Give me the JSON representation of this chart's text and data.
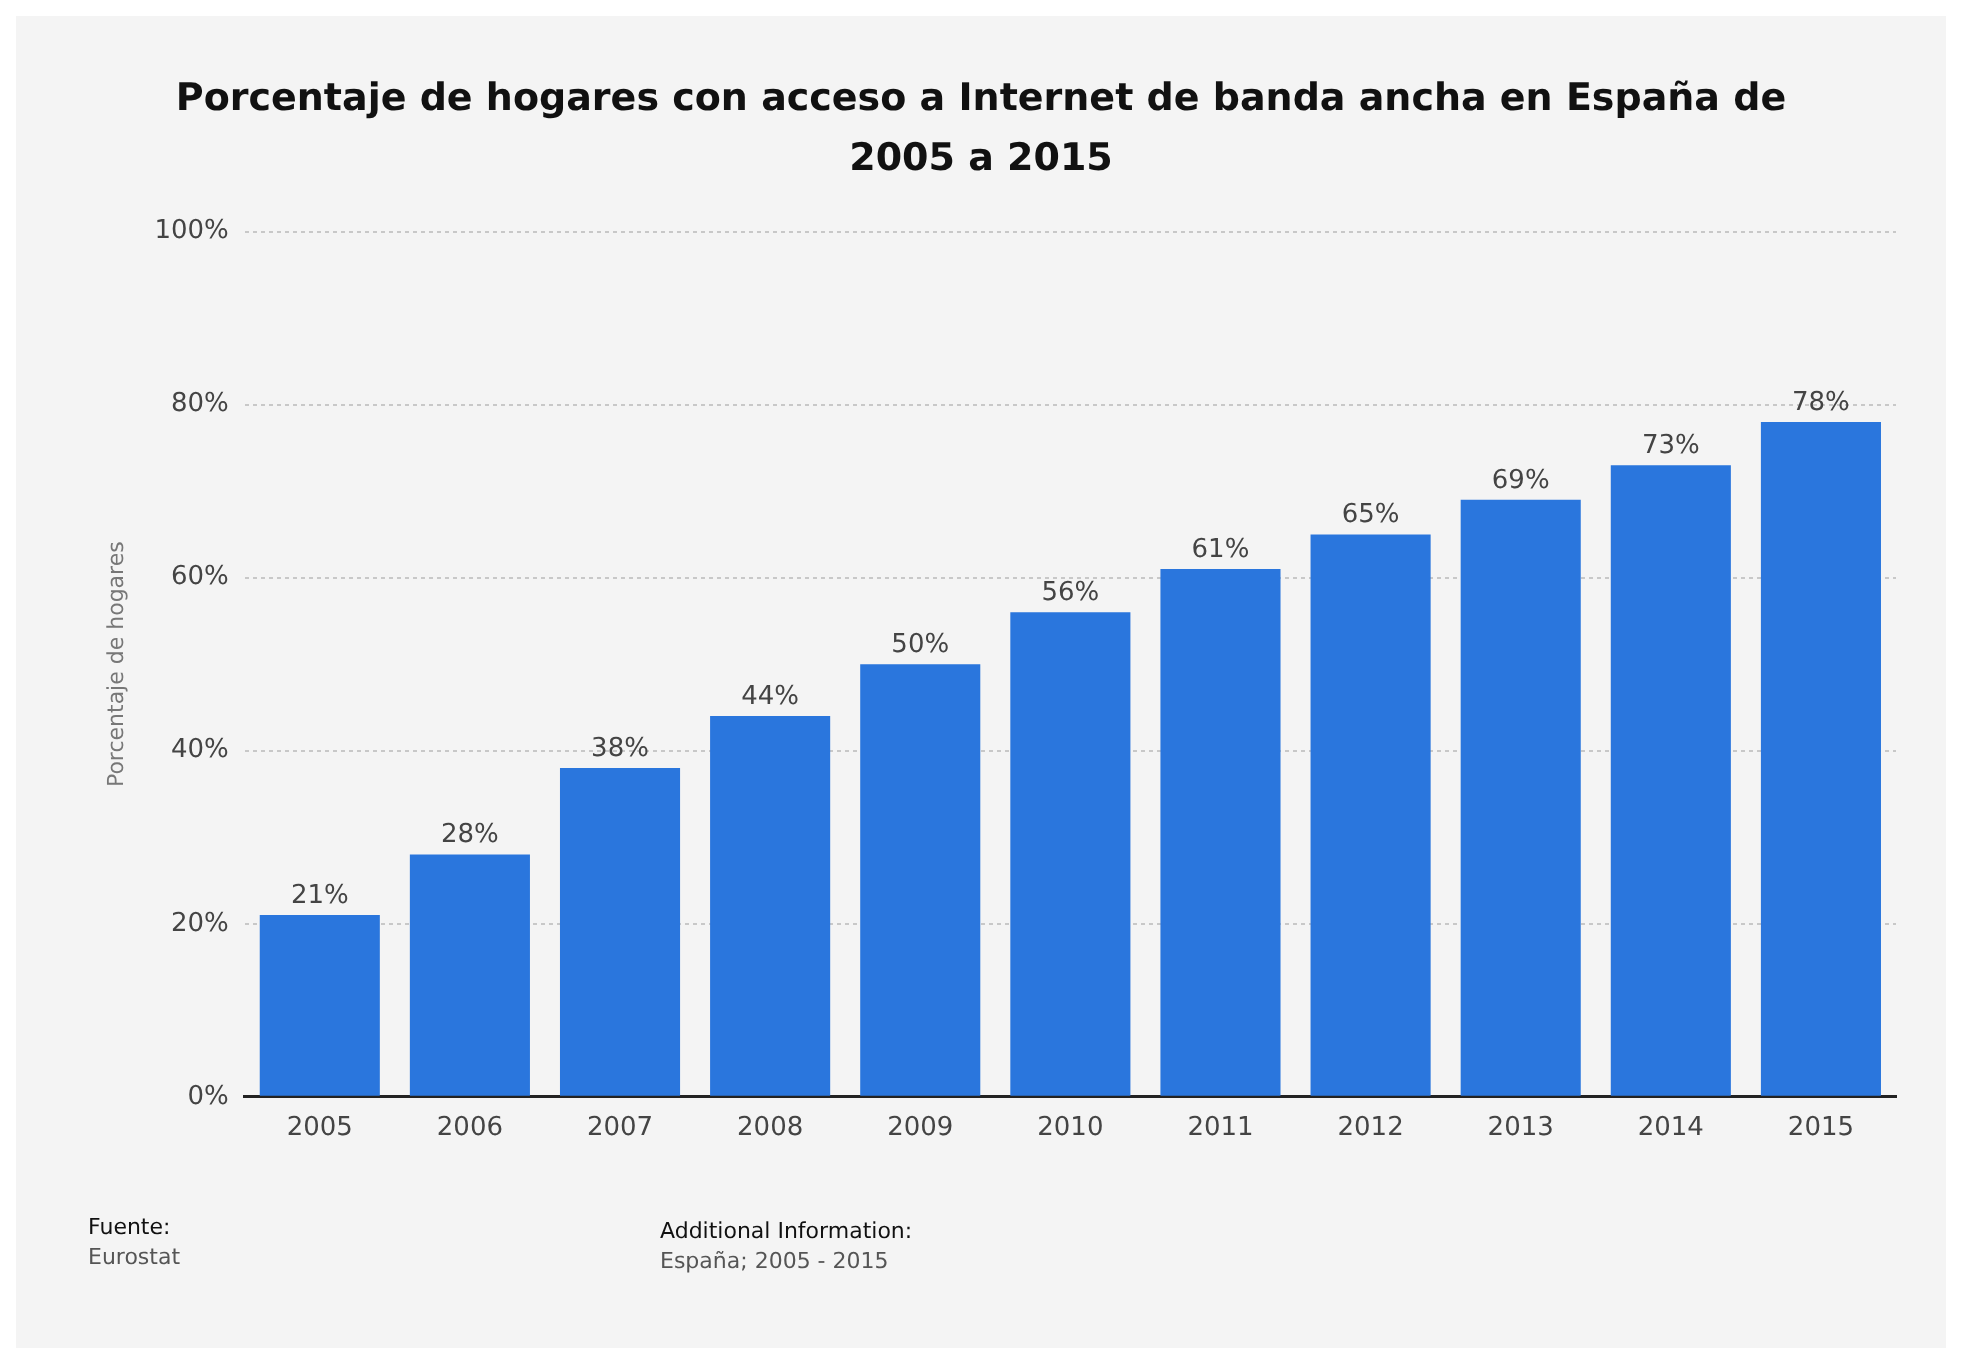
{
  "chart_data": {
    "type": "bar",
    "title": "Porcentaje de hogares con acceso a Internet de banda ancha en España de 2005 a 2015",
    "ylabel": "Porcentaje de hogares",
    "categories": [
      "2005",
      "2006",
      "2007",
      "2008",
      "2009",
      "2010",
      "2011",
      "2012",
      "2013",
      "2014",
      "2015"
    ],
    "values": [
      21,
      28,
      38,
      44,
      50,
      56,
      61,
      65,
      69,
      73,
      78
    ],
    "color": "#2a76dd",
    "value_labels": [
      "21%",
      "28%",
      "38%",
      "44%",
      "50%",
      "56%",
      "61%",
      "65%",
      "69%",
      "73%",
      "78%"
    ],
    "ylim": [
      0,
      100
    ],
    "yticks": [
      {
        "value": 0,
        "label": "0%"
      },
      {
        "value": 20,
        "label": "20%"
      },
      {
        "value": 40,
        "label": "40%"
      },
      {
        "value": 60,
        "label": "60%"
      },
      {
        "value": 80,
        "label": "80%"
      },
      {
        "value": 100,
        "label": "100%"
      }
    ],
    "grid": "y",
    "legend": false,
    "annotations": [
      "Fuente:",
      "Eurostat",
      "Additional Information:",
      "España; 2005 - 2015"
    ]
  }
}
